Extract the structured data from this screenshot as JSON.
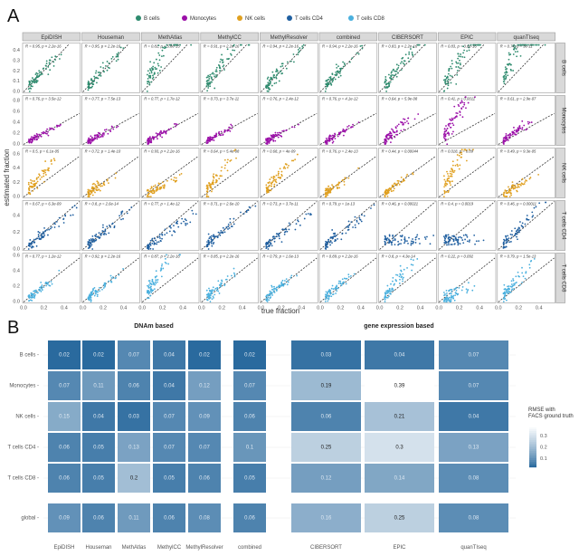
{
  "panel_labels": {
    "a": "A",
    "b": "B"
  },
  "chart_data": [
    {
      "type": "scatter",
      "title": "",
      "xlabel": "true fraction",
      "ylabel": "estimated fraction",
      "methods": [
        "EpiDISH",
        "Houseman",
        "MethAtlas",
        "MethylCC",
        "MethylResolver",
        "combined",
        "CIBERSORT",
        "EPIC",
        "quanTIseq"
      ],
      "cell_types": [
        "B cells",
        "Monocytes",
        "NK cells",
        "T cells CD4",
        "T cells CD8"
      ],
      "legend": [
        {
          "label": "B cells",
          "color": "#2e8b6e"
        },
        {
          "label": "Monocytes",
          "color": "#9b0fa8"
        },
        {
          "label": "NK cells",
          "color": "#e0a020"
        },
        {
          "label": "T cells CD4",
          "color": "#1f5fa0"
        },
        {
          "label": "T cells CD8",
          "color": "#4ab0de"
        }
      ],
      "legend_position": "top",
      "x_ticks": [
        "0.0",
        "0.2",
        "0.4"
      ],
      "xlim": [
        0,
        0.55
      ],
      "rows": [
        {
          "cell_type": "B cells",
          "y_ticks": [
            "0.0",
            "0.1",
            "0.2",
            "0.3",
            "0.4"
          ],
          "ylim": [
            0,
            0.45
          ],
          "annotations": [
            "R = 0.95, p < 2.2e-16",
            "R = 0.95, p < 2.2e-16",
            "R = 0.81, p = 5.8e-15",
            "R = 0.91, p < 2.2e-16",
            "R = 0.94, p < 2.2e-16",
            "R = 0.94, p < 2.2e-16",
            "R = 0.83, p < 2.2e-16",
            "R = 0.83, p = 3.6e-16",
            "R = 0.74, p = 3e-11"
          ],
          "slope_by_method": [
            1.0,
            1.0,
            1.9,
            1.3,
            1.0,
            1.0,
            1.2,
            1.5,
            2.2
          ]
        },
        {
          "cell_type": "Monocytes",
          "y_ticks": [
            "0.0",
            "0.2",
            "0.4",
            "0.6",
            "0.8"
          ],
          "ylim": [
            0,
            0.85
          ],
          "annotations": [
            "R = 0.76, p = 3.5e-12",
            "R = 0.77, p = 7.5e-13",
            "R = 0.77, p = 1.7e-12",
            "R = 0.73, p = 3.7e-11",
            "R = 0.76, p = 2.4e-12",
            "R = 0.76, p = 4.1e-12",
            "R = 0.64, p = 5.9e-08",
            "R = 0.41, p = 0.0011",
            "R = 0.61, p = 2.9e-07"
          ],
          "slope_by_method": [
            1.0,
            1.0,
            1.0,
            1.0,
            1.0,
            1.0,
            1.5,
            3.0,
            1.3
          ]
        },
        {
          "cell_type": "NK cells",
          "y_ticks": [
            "0.0",
            "0.2",
            "0.4",
            "0.6"
          ],
          "ylim": [
            0,
            0.65
          ],
          "annotations": [
            "R = 0.5, p = 6.1e-05",
            "R = 0.72, p = 1.4e-10",
            "R = 0.93, p < 2.2e-16",
            "R = 0.64, p = 5.4e-08",
            "R = 0.68, p = 4e-09",
            "R = 0.76, p = 2.4e-13",
            "R = 0.44, p = 0.00044",
            "R = 0.018, p = 0.89",
            "R = 0.49, p = 9.3e-05"
          ],
          "slope_by_method": [
            1.6,
            0.9,
            0.8,
            1.7,
            1.6,
            1.0,
            1.0,
            2.5,
            0.8
          ]
        },
        {
          "cell_type": "T cells CD4",
          "y_ticks": [
            "0.0",
            "0.2",
            "0.4"
          ],
          "ylim": [
            0,
            0.55
          ],
          "annotations": [
            "R = 0.67, p = 6.3e-09",
            "R = 0.8, p = 2.6e-14",
            "R = 0.77, p = 1.4e-12",
            "R = 0.71, p = 2.6e-10",
            "R = 0.73, p = 3.7e-11",
            "R = 0.79, p = 1e-13",
            "R = 0.46, p = 0.00021",
            "R = 0.4, p = 0.0019",
            "R = 0.46, p = 0.00011"
          ],
          "slope_by_method": [
            0.9,
            1.0,
            0.75,
            1.0,
            0.9,
            0.9,
            0.35,
            0.3,
            1.2
          ]
        },
        {
          "cell_type": "T cells CD8",
          "y_ticks": [
            "0.0",
            "0.2",
            "0.4",
            "0.6"
          ],
          "ylim": [
            0,
            0.6
          ],
          "annotations": [
            "R = 0.77, p = 1.2e-12",
            "R = 0.92, p < 2.2e-16",
            "R = 0.87, p < 2.2e-16",
            "R = 0.85, p < 2.2e-16",
            "R = 0.79, p = 1.6e-13",
            "R = 0.89, p < 2.2e-16",
            "R = 0.8, p = 4.3e-14",
            "R = 0.22, p = 0.092",
            "R = 0.79, p = 1.5e-13"
          ],
          "slope_by_method": [
            1.0,
            1.0,
            2.0,
            1.1,
            1.0,
            1.1,
            1.6,
            0.6,
            1.5
          ]
        }
      ]
    },
    {
      "type": "heatmap",
      "title": "",
      "group_titles": [
        "DNAm based",
        "gene expression based"
      ],
      "rows": [
        "B cells",
        "Monocytes",
        "NK cells",
        "T cells CD4",
        "T cells CD8",
        "global"
      ],
      "columns": [
        "EpiDISH",
        "Houseman",
        "MethAtlas",
        "MethylCC",
        "MethylResolver",
        "combined",
        "CIBERSORT",
        "EPIC",
        "quanTIseq"
      ],
      "values": [
        [
          0.02,
          0.02,
          0.07,
          0.04,
          0.02,
          0.02,
          0.03,
          0.04,
          0.07
        ],
        [
          0.07,
          0.11,
          0.06,
          0.04,
          0.12,
          0.07,
          0.19,
          0.39,
          0.07
        ],
        [
          0.15,
          0.04,
          0.03,
          0.07,
          0.09,
          0.06,
          0.06,
          0.21,
          0.04
        ],
        [
          0.06,
          0.05,
          0.13,
          0.07,
          0.07,
          0.1,
          0.25,
          0.3,
          0.13
        ],
        [
          0.06,
          0.05,
          0.2,
          0.05,
          0.06,
          0.05,
          0.12,
          0.14,
          0.08
        ],
        [
          0.09,
          0.06,
          0.11,
          0.06,
          0.08,
          0.06,
          0.16,
          0.25,
          0.08
        ]
      ],
      "legend_title": "RMSE with FACS ground truth",
      "legend_ticks": [
        "0.3",
        "0.2",
        "0.1"
      ],
      "color_low": "#2a6a9e",
      "color_high": "#ffffff",
      "value_range": [
        0.02,
        0.39
      ],
      "legend_position": "right"
    }
  ]
}
